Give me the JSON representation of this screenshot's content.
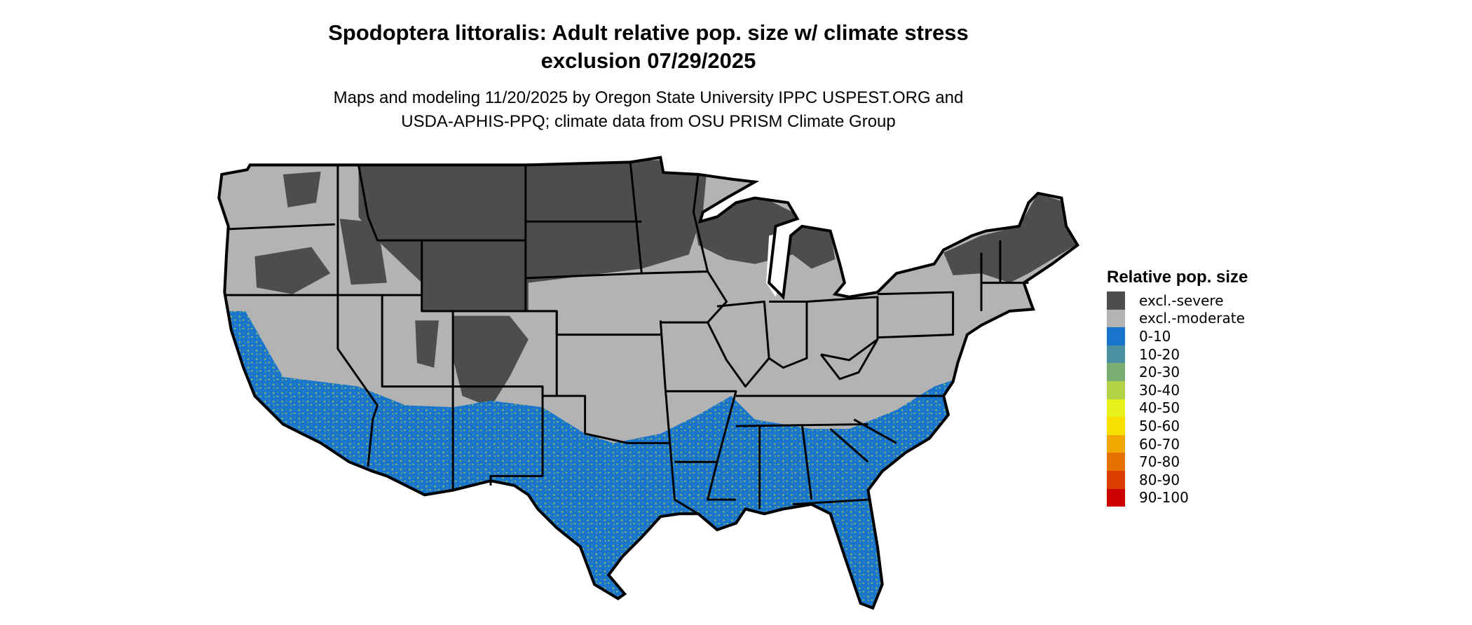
{
  "title": {
    "line1": "Spodoptera littoralis: Adult relative pop. size w/ climate stress",
    "line2": "exclusion 07/29/2025"
  },
  "subtitle": {
    "line1": "Maps and modeling 11/20/2025 by Oregon State University IPPC USPEST.ORG and",
    "line2": "USDA-APHIS-PPQ; climate data from OSU PRISM Climate Group"
  },
  "chart_data": {
    "type": "choropleth-map",
    "region": "Contiguous United States with state boundaries",
    "legend_title": "Relative pop. size",
    "legend_placement": "right",
    "categories": [
      {
        "label": "excl.-severe",
        "color": "#4d4d4d"
      },
      {
        "label": "excl.-moderate",
        "color": "#b3b3b3"
      },
      {
        "label": "0-10",
        "color": "#1874cd"
      },
      {
        "label": "10-20",
        "color": "#4a90a0"
      },
      {
        "label": "20-30",
        "color": "#7aae74"
      },
      {
        "label": "30-40",
        "color": "#b3d144"
      },
      {
        "label": "40-50",
        "color": "#e6f01a"
      },
      {
        "label": "50-60",
        "color": "#f8e000"
      },
      {
        "label": "60-70",
        "color": "#f0a800"
      },
      {
        "label": "70-80",
        "color": "#e67300"
      },
      {
        "label": "80-90",
        "color": "#dc3c00"
      },
      {
        "label": "90-100",
        "color": "#cd0000"
      }
    ]
  }
}
